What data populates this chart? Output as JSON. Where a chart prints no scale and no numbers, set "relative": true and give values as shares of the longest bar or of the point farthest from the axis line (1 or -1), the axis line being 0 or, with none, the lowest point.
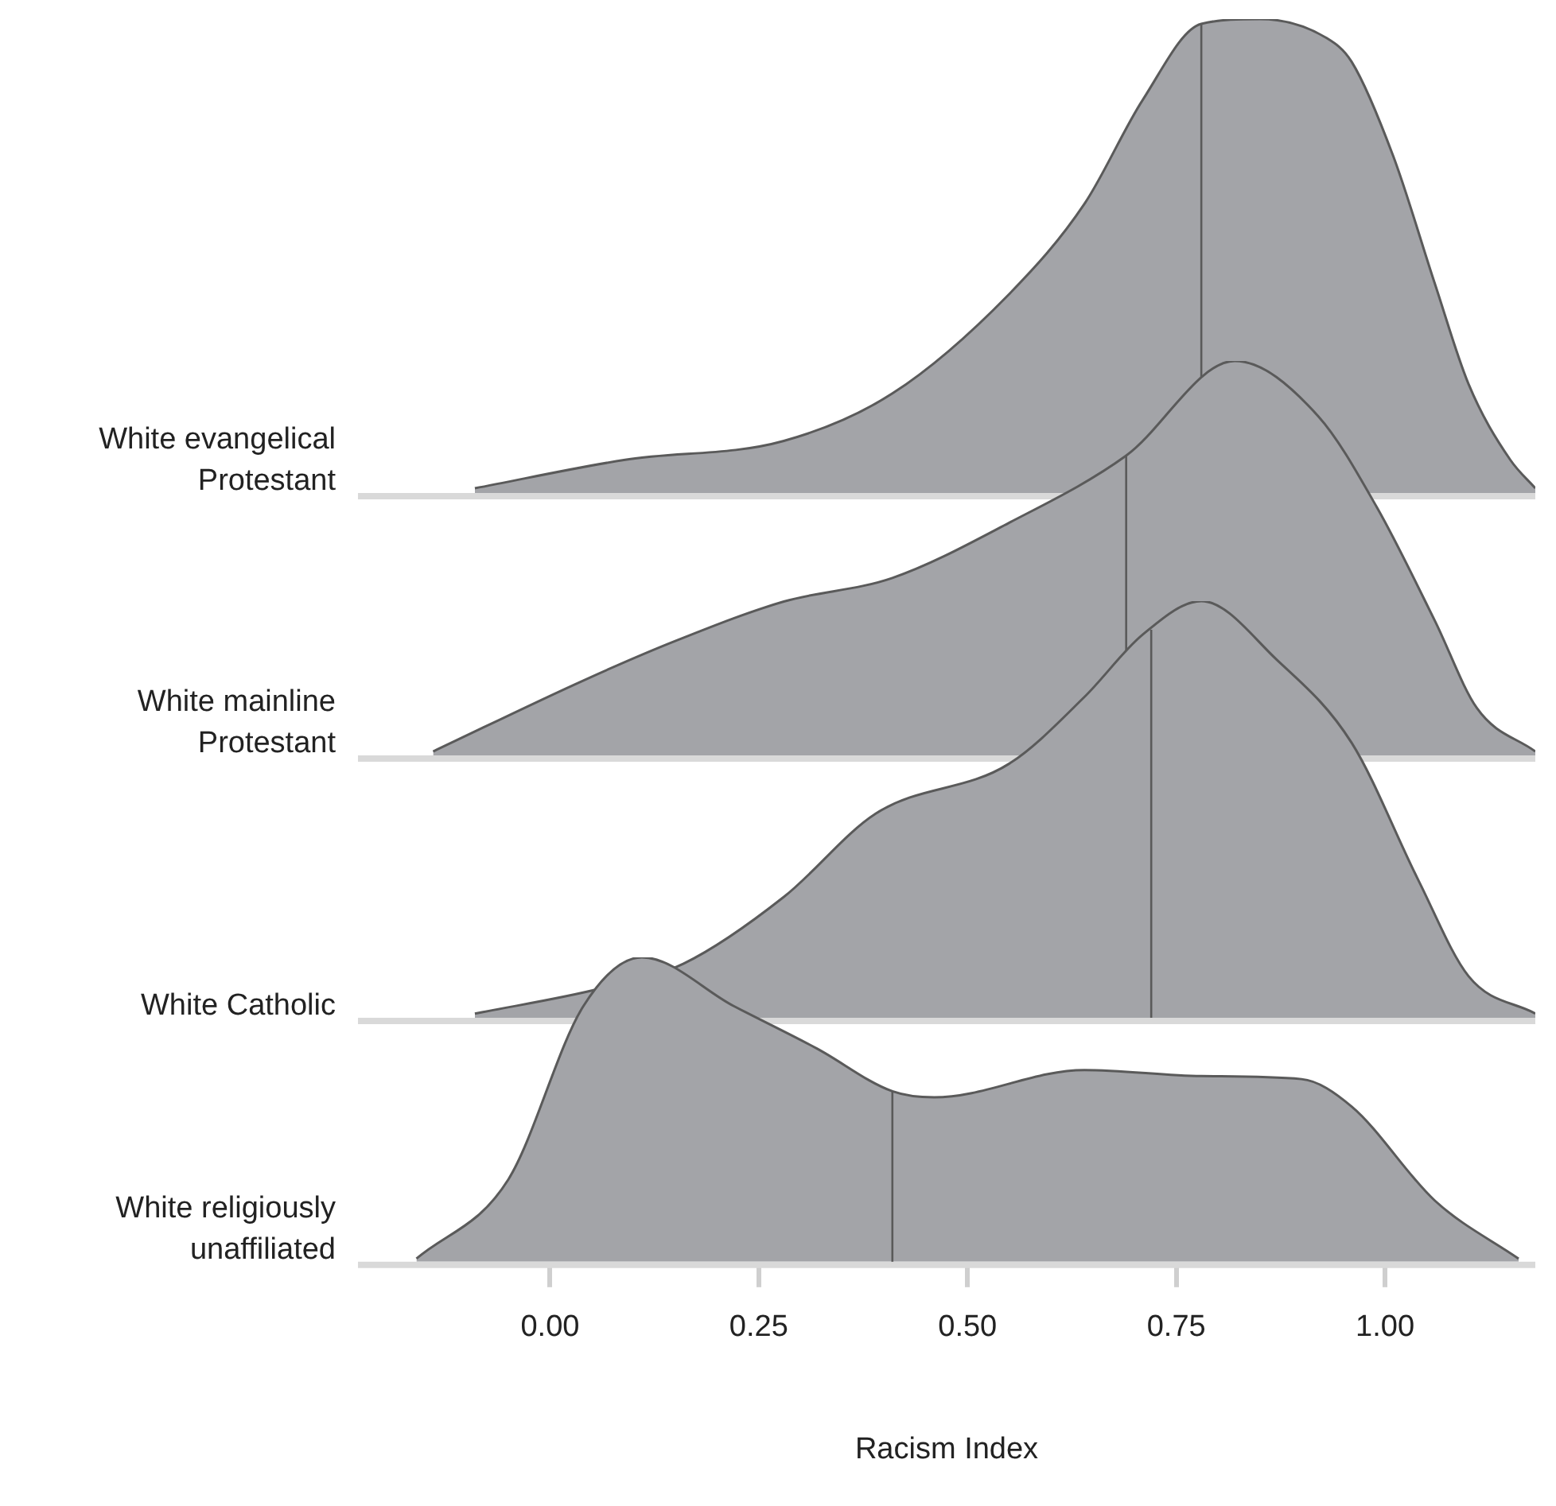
{
  "chart_data": [
    {
      "type": "area",
      "relative": true,
      "tick_labels": false,
      "xlim": [
        -0.23,
        1.18
      ],
      "series": [
        {
          "name": "White evangelical Protestant",
          "color": "#a3a4a8",
          "x": [
            -0.09,
            0.09,
            0.28,
            0.41,
            0.55,
            0.64,
            0.71,
            0.78,
            0.85,
            0.93,
            0.96,
            1.01,
            1.06,
            1.1,
            1.15,
            1.18
          ],
          "values": [
            0.01,
            0.07,
            0.11,
            0.21,
            0.42,
            0.61,
            0.83,
            0.99,
            1,
            0.96,
            0.91,
            0.71,
            0.44,
            0.23,
            0.07,
            0.01
          ]
        }
      ],
      "ref_lines": [
        {
          "axis": "x",
          "value": 0.78
        }
      ]
    },
    {
      "type": "area",
      "relative": true,
      "tick_labels": false,
      "xlim": [
        -0.23,
        1.18
      ],
      "series": [
        {
          "name": "White mainline Protestant",
          "color": "#a3a4a8",
          "x": [
            -0.14,
            0.04,
            0.15,
            0.28,
            0.41,
            0.55,
            0.69,
            0.82,
            0.92,
            0.99,
            1.06,
            1.11,
            1.18
          ],
          "values": [
            0.01,
            0.19,
            0.29,
            0.39,
            0.45,
            0.59,
            0.76,
            1,
            0.86,
            0.63,
            0.34,
            0.12,
            0.01
          ]
        }
      ],
      "ref_lines": [
        {
          "axis": "x",
          "value": 0.69
        }
      ]
    },
    {
      "type": "area",
      "relative": true,
      "tick_labels": false,
      "xlim": [
        -0.23,
        1.18
      ],
      "series": [
        {
          "name": "White Catholic",
          "color": "#a3a4a8",
          "x": [
            -0.09,
            0.06,
            0.16,
            0.28,
            0.39,
            0.55,
            0.64,
            0.71,
            0.78,
            0.87,
            0.96,
            1.04,
            1.1,
            1.18
          ],
          "values": [
            0.01,
            0.07,
            0.13,
            0.29,
            0.49,
            0.61,
            0.77,
            0.92,
            1,
            0.86,
            0.66,
            0.33,
            0.1,
            0.01
          ]
        }
      ],
      "ref_lines": [
        {
          "axis": "x",
          "value": 0.72
        }
      ]
    },
    {
      "type": "area",
      "relative": true,
      "tick_labels": "x",
      "xlabel": "Racism Index",
      "xlim": [
        -0.23,
        1.18
      ],
      "xticks": [
        {
          "value": 0,
          "label": "0.00"
        },
        {
          "value": 0.25,
          "label": "0.25"
        },
        {
          "value": 0.5,
          "label": "0.50"
        },
        {
          "value": 0.75,
          "label": "0.75"
        },
        {
          "value": 1,
          "label": "1.00"
        }
      ],
      "series": [
        {
          "name": "White religiously unaffiliated",
          "color": "#a3a4a8",
          "x": [
            -0.16,
            -0.05,
            0.04,
            0.11,
            0.22,
            0.32,
            0.41,
            0.46,
            0.64,
            0.78,
            0.9,
            0.96,
            1.06,
            1.16
          ],
          "values": [
            0.01,
            0.27,
            0.84,
            1,
            0.84,
            0.7,
            0.56,
            0.54,
            0.63,
            0.61,
            0.6,
            0.51,
            0.2,
            0.01
          ]
        }
      ],
      "ref_lines": [
        {
          "axis": "x",
          "value": 0.41
        }
      ]
    }
  ]
}
